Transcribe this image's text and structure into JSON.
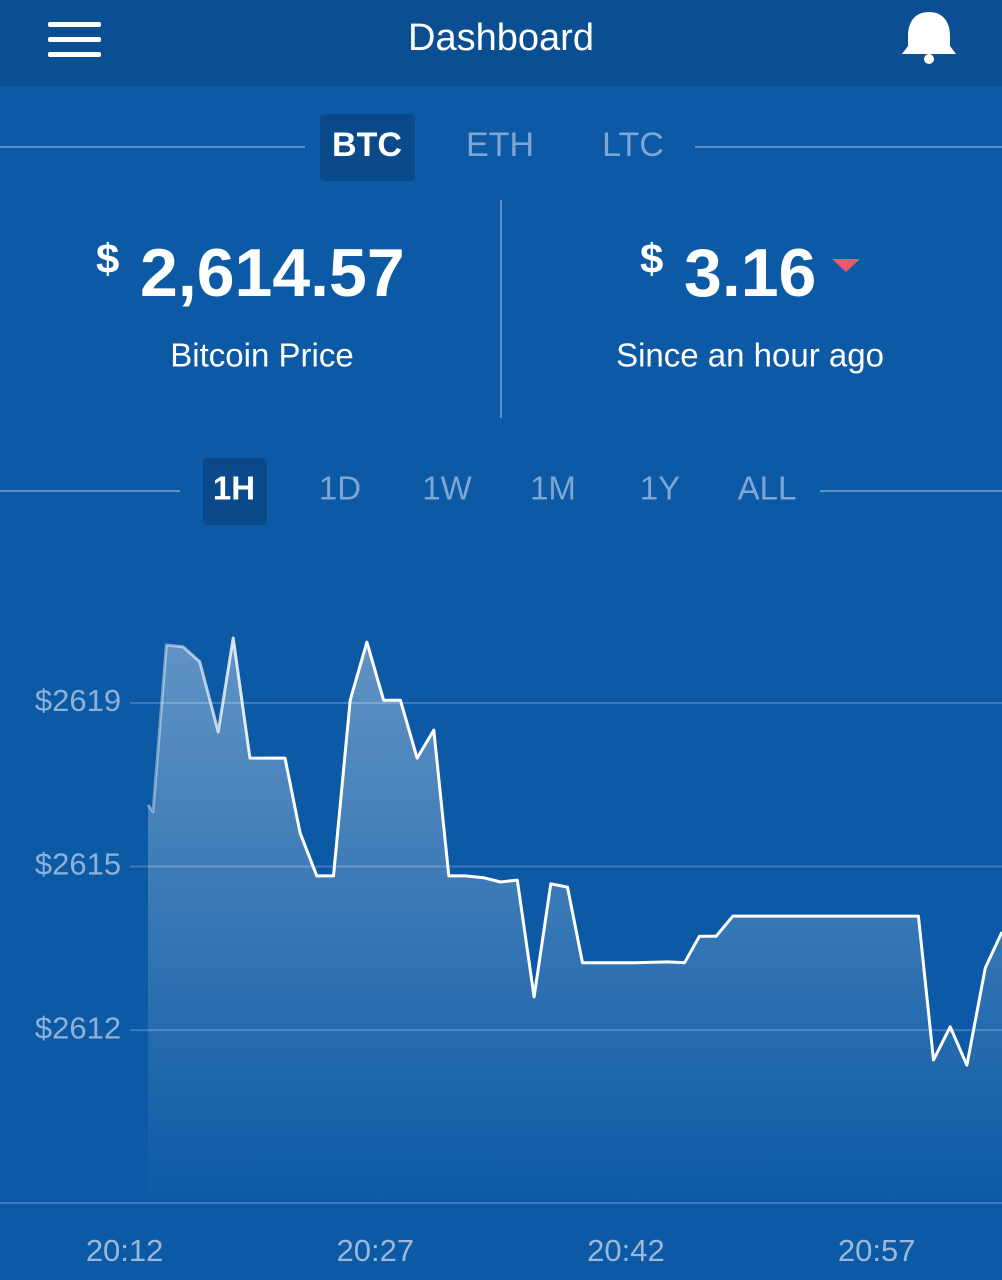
{
  "header": {
    "title": "Dashboard"
  },
  "tabs": [
    "BTC",
    "ETH",
    "LTC"
  ],
  "stats": {
    "price": {
      "currency": "$",
      "amount": "2,614.57",
      "label": "Bitcoin Price"
    },
    "change": {
      "currency": "$",
      "amount": "3.16",
      "label": "Since an hour ago"
    }
  },
  "ranges": [
    "1H",
    "1D",
    "1W",
    "1M",
    "1Y",
    "ALL"
  ],
  "chart_data": {
    "type": "area",
    "color": "#ffffff",
    "grid": true,
    "x": [
      1213.4,
      1213.7,
      1214.5,
      1215.5,
      1216.5,
      1217.6,
      1218.5,
      1219.5,
      1221.6,
      1222.5,
      1223.5,
      1224.5,
      1225.5,
      1226.5,
      1227.5,
      1228.5,
      1229.5,
      1230.5,
      1231.4,
      1232.4,
      1233.5,
      1234.5,
      1235.5,
      1236.5,
      1237.5,
      1238.5,
      1239.4,
      1240.5,
      1242.5,
      1244.5,
      1245.5,
      1246.4,
      1247.4,
      1248.4,
      1250.4,
      1253.4,
      1256.4,
      1259.5,
      1260.4,
      1261.4,
      1262.4,
      1263.5,
      1264.5
    ],
    "values": [
      2616.62,
      2616.47,
      2620.04,
      2620.0,
      2619.68,
      2618.18,
      2620.19,
      2617.62,
      2617.62,
      2616.02,
      2615.1,
      2615.1,
      2618.86,
      2620.1,
      2618.86,
      2618.86,
      2617.62,
      2618.22,
      2615.1,
      2615.1,
      2615.06,
      2614.97,
      2615.01,
      2612.51,
      2614.93,
      2614.86,
      2613.24,
      2613.24,
      2613.24,
      2613.26,
      2613.24,
      2613.81,
      2613.81,
      2614.24,
      2614.24,
      2614.24,
      2614.24,
      2614.24,
      2611.16,
      2611.87,
      2611.05,
      2613.13,
      2613.9
    ],
    "xlim": [
      1213.4,
      1264.5
    ],
    "ylim": [
      2608.1,
      2621.86
    ],
    "xticks": [
      {
        "value": 1212,
        "label": "20:12"
      },
      {
        "value": 1227,
        "label": "20:27"
      },
      {
        "value": 1242,
        "label": "20:42"
      },
      {
        "value": 1257,
        "label": "20:57"
      }
    ],
    "yticks": [
      {
        "value": 2618.8,
        "label": "$2619"
      },
      {
        "value": 2615.3,
        "label": "$2615"
      },
      {
        "value": 2611.8,
        "label": "$2612"
      }
    ]
  }
}
